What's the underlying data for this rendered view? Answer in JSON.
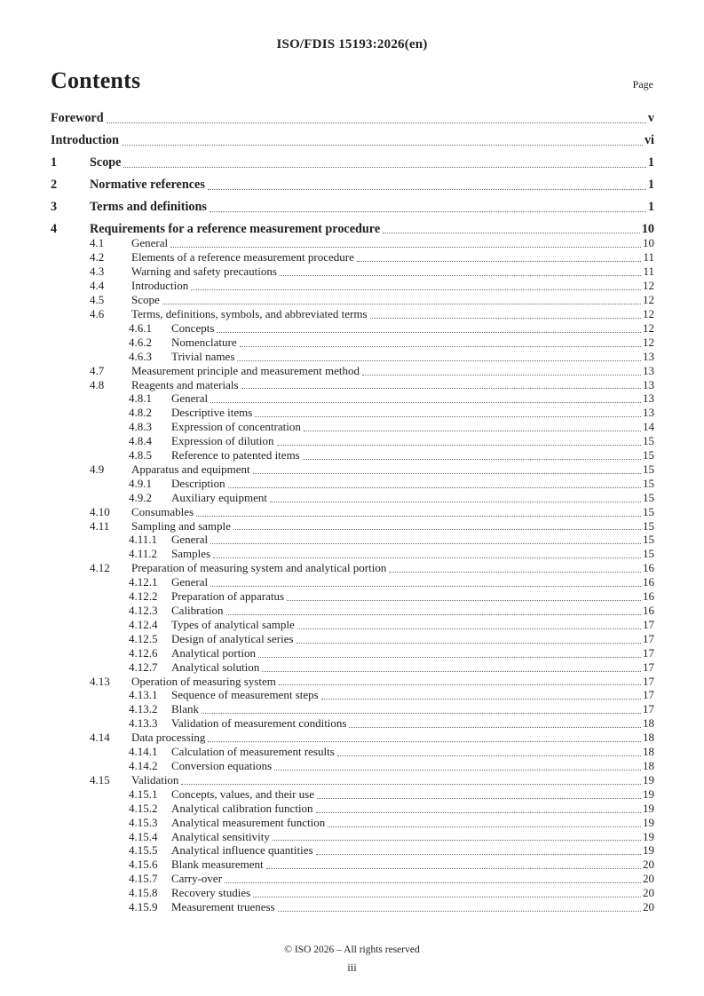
{
  "header": {
    "document_id": "ISO/FDIS 15193:2026(en)"
  },
  "contents": {
    "heading": "Contents",
    "page_column_label": "Page",
    "entries": [
      {
        "level": 1,
        "num": "",
        "title": "Foreword",
        "page": "v"
      },
      {
        "level": 1,
        "num": "",
        "title": "Introduction",
        "page": "vi"
      },
      {
        "level": 1,
        "num": "1",
        "title": "Scope",
        "page": "1"
      },
      {
        "level": 1,
        "num": "2",
        "title": "Normative references",
        "page": "1"
      },
      {
        "level": 1,
        "num": "3",
        "title": "Terms and definitions",
        "page": "1"
      },
      {
        "level": 1,
        "num": "4",
        "title": "Requirements for a reference measurement procedure",
        "page": "10"
      },
      {
        "level": 2,
        "num": "4.1",
        "title": "General",
        "page": "10"
      },
      {
        "level": 2,
        "num": "4.2",
        "title": "Elements of a reference measurement procedure",
        "page": "11"
      },
      {
        "level": 2,
        "num": "4.3",
        "title": "Warning and safety precautions",
        "page": "11"
      },
      {
        "level": 2,
        "num": "4.4",
        "title": "Introduction",
        "page": "12"
      },
      {
        "level": 2,
        "num": "4.5",
        "title": "Scope",
        "page": "12"
      },
      {
        "level": 2,
        "num": "4.6",
        "title": "Terms, definitions, symbols, and abbreviated terms",
        "page": "12"
      },
      {
        "level": 3,
        "num": "4.6.1",
        "title": "Concepts",
        "page": "12"
      },
      {
        "level": 3,
        "num": "4.6.2",
        "title": "Nomenclature",
        "page": "12"
      },
      {
        "level": 3,
        "num": "4.6.3",
        "title": "Trivial names",
        "page": "13"
      },
      {
        "level": 2,
        "num": "4.7",
        "title": "Measurement principle and measurement method",
        "page": "13"
      },
      {
        "level": 2,
        "num": "4.8",
        "title": "Reagents and materials",
        "page": "13"
      },
      {
        "level": 3,
        "num": "4.8.1",
        "title": "General",
        "page": "13"
      },
      {
        "level": 3,
        "num": "4.8.2",
        "title": "Descriptive items",
        "page": "13"
      },
      {
        "level": 3,
        "num": "4.8.3",
        "title": "Expression of concentration",
        "page": "14"
      },
      {
        "level": 3,
        "num": "4.8.4",
        "title": "Expression of dilution",
        "page": "15"
      },
      {
        "level": 3,
        "num": "4.8.5",
        "title": "Reference to patented items",
        "page": "15"
      },
      {
        "level": 2,
        "num": "4.9",
        "title": "Apparatus and equipment",
        "page": "15"
      },
      {
        "level": 3,
        "num": "4.9.1",
        "title": "Description",
        "page": "15"
      },
      {
        "level": 3,
        "num": "4.9.2",
        "title": "Auxiliary equipment",
        "page": "15"
      },
      {
        "level": 2,
        "num": "4.10",
        "title": "Consumables",
        "page": "15"
      },
      {
        "level": 2,
        "num": "4.11",
        "title": "Sampling and sample",
        "page": "15"
      },
      {
        "level": 3,
        "num": "4.11.1",
        "title": "General",
        "page": "15"
      },
      {
        "level": 3,
        "num": "4.11.2",
        "title": "Samples",
        "page": "15"
      },
      {
        "level": 2,
        "num": "4.12",
        "title": "Preparation of measuring system and analytical portion",
        "page": "16"
      },
      {
        "level": 3,
        "num": "4.12.1",
        "title": "General",
        "page": "16"
      },
      {
        "level": 3,
        "num": "4.12.2",
        "title": "Preparation of apparatus",
        "page": "16"
      },
      {
        "level": 3,
        "num": "4.12.3",
        "title": "Calibration",
        "page": "16"
      },
      {
        "level": 3,
        "num": "4.12.4",
        "title": "Types of analytical sample",
        "page": "17"
      },
      {
        "level": 3,
        "num": "4.12.5",
        "title": "Design of analytical series",
        "page": "17"
      },
      {
        "level": 3,
        "num": "4.12.6",
        "title": "Analytical portion",
        "page": "17"
      },
      {
        "level": 3,
        "num": "4.12.7",
        "title": "Analytical solution",
        "page": "17"
      },
      {
        "level": 2,
        "num": "4.13",
        "title": "Operation of measuring system",
        "page": "17"
      },
      {
        "level": 3,
        "num": "4.13.1",
        "title": "Sequence of measurement steps",
        "page": "17"
      },
      {
        "level": 3,
        "num": "4.13.2",
        "title": "Blank",
        "page": "17"
      },
      {
        "level": 3,
        "num": "4.13.3",
        "title": "Validation of measurement conditions",
        "page": "18"
      },
      {
        "level": 2,
        "num": "4.14",
        "title": "Data processing",
        "page": "18"
      },
      {
        "level": 3,
        "num": "4.14.1",
        "title": "Calculation of measurement results",
        "page": "18"
      },
      {
        "level": 3,
        "num": "4.14.2",
        "title": "Conversion equations",
        "page": "18"
      },
      {
        "level": 2,
        "num": "4.15",
        "title": "Validation",
        "page": "19"
      },
      {
        "level": 3,
        "num": "4.15.1",
        "title": "Concepts, values, and their use",
        "page": "19"
      },
      {
        "level": 3,
        "num": "4.15.2",
        "title": "Analytical calibration function",
        "page": "19"
      },
      {
        "level": 3,
        "num": "4.15.3",
        "title": "Analytical measurement function",
        "page": "19"
      },
      {
        "level": 3,
        "num": "4.15.4",
        "title": "Analytical sensitivity",
        "page": "19"
      },
      {
        "level": 3,
        "num": "4.15.5",
        "title": "Analytical influence quantities",
        "page": "19"
      },
      {
        "level": 3,
        "num": "4.15.6",
        "title": "Blank measurement",
        "page": "20"
      },
      {
        "level": 3,
        "num": "4.15.7",
        "title": "Carry-over",
        "page": "20"
      },
      {
        "level": 3,
        "num": "4.15.8",
        "title": "Recovery studies",
        "page": "20"
      },
      {
        "level": 3,
        "num": "4.15.9",
        "title": "Measurement trueness",
        "page": "20"
      }
    ]
  },
  "footer": {
    "copyright": "© ISO 2026 – All rights reserved",
    "folio": "iii"
  },
  "colors": {
    "text": "#1f1f1f",
    "leader_dots": "#6e6e6e"
  }
}
